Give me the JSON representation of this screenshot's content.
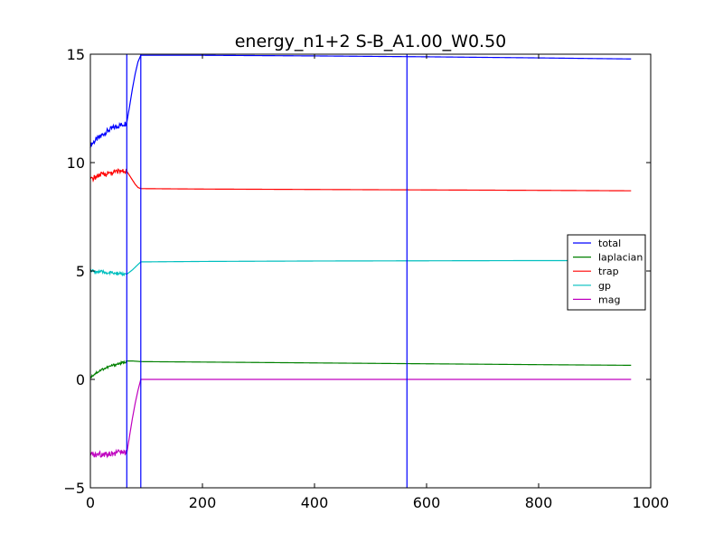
{
  "chart_data": {
    "type": "line",
    "title": "energy_n1+2 S-B_A1.00_W0.50",
    "xlabel": "",
    "ylabel": "",
    "xlim": [
      0,
      1000
    ],
    "ylim": [
      -5,
      15
    ],
    "x_ticks": [
      0,
      200,
      400,
      600,
      800,
      1000
    ],
    "y_ticks": [
      -5,
      0,
      5,
      10,
      15
    ],
    "x_tick_labels": [
      "0",
      "200",
      "400",
      "600",
      "800",
      "1000"
    ],
    "y_tick_labels": [
      "−5",
      "0",
      "5",
      "10",
      "15"
    ],
    "grid": false,
    "legend_position": "center-right",
    "vertical_lines": [
      {
        "x": 65,
        "color": "#0000ff"
      },
      {
        "x": 90,
        "color": "#0000ff"
      },
      {
        "x": 565,
        "color": "#0000ff"
      }
    ],
    "series": [
      {
        "name": "total",
        "color": "#0000ff",
        "noise": 0.12,
        "points": [
          [
            0,
            10.8
          ],
          [
            10,
            11.05
          ],
          [
            20,
            11.25
          ],
          [
            30,
            11.45
          ],
          [
            40,
            11.6
          ],
          [
            50,
            11.7
          ],
          [
            60,
            11.78
          ],
          [
            65,
            11.85
          ],
          [
            70,
            12.6
          ],
          [
            75,
            13.4
          ],
          [
            80,
            14.1
          ],
          [
            85,
            14.65
          ],
          [
            90,
            14.95
          ],
          [
            200,
            14.95
          ],
          [
            400,
            14.92
          ],
          [
            600,
            14.88
          ],
          [
            800,
            14.83
          ],
          [
            965,
            14.78
          ]
        ]
      },
      {
        "name": "laplacian",
        "color": "#008000",
        "noise": 0.06,
        "points": [
          [
            0,
            0.1
          ],
          [
            10,
            0.3
          ],
          [
            20,
            0.45
          ],
          [
            30,
            0.55
          ],
          [
            40,
            0.65
          ],
          [
            50,
            0.72
          ],
          [
            60,
            0.78
          ],
          [
            65,
            0.85
          ],
          [
            75,
            0.85
          ],
          [
            90,
            0.82
          ],
          [
            200,
            0.8
          ],
          [
            400,
            0.76
          ],
          [
            600,
            0.72
          ],
          [
            800,
            0.68
          ],
          [
            965,
            0.65
          ]
        ]
      },
      {
        "name": "trap",
        "color": "#ff0000",
        "noise": 0.12,
        "points": [
          [
            0,
            9.2
          ],
          [
            10,
            9.35
          ],
          [
            20,
            9.45
          ],
          [
            30,
            9.5
          ],
          [
            40,
            9.55
          ],
          [
            50,
            9.6
          ],
          [
            65,
            9.6
          ],
          [
            70,
            9.4
          ],
          [
            75,
            9.2
          ],
          [
            80,
            9.0
          ],
          [
            85,
            8.85
          ],
          [
            90,
            8.8
          ],
          [
            200,
            8.78
          ],
          [
            400,
            8.76
          ],
          [
            600,
            8.74
          ],
          [
            800,
            8.72
          ],
          [
            965,
            8.7
          ]
        ]
      },
      {
        "name": "gp",
        "color": "#00bfbf",
        "noise": 0.08,
        "points": [
          [
            0,
            5.0
          ],
          [
            20,
            4.95
          ],
          [
            40,
            4.9
          ],
          [
            60,
            4.85
          ],
          [
            65,
            4.85
          ],
          [
            75,
            5.05
          ],
          [
            85,
            5.3
          ],
          [
            90,
            5.42
          ],
          [
            200,
            5.44
          ],
          [
            400,
            5.46
          ],
          [
            600,
            5.47
          ],
          [
            800,
            5.48
          ],
          [
            965,
            5.48
          ]
        ]
      },
      {
        "name": "mag",
        "color": "#bf00bf",
        "noise": 0.14,
        "points": [
          [
            0,
            -3.5
          ],
          [
            20,
            -3.45
          ],
          [
            40,
            -3.4
          ],
          [
            60,
            -3.35
          ],
          [
            65,
            -3.4
          ],
          [
            70,
            -2.6
          ],
          [
            75,
            -1.8
          ],
          [
            80,
            -1.1
          ],
          [
            85,
            -0.5
          ],
          [
            90,
            0.0
          ],
          [
            200,
            0.0
          ],
          [
            400,
            0.0
          ],
          [
            600,
            0.0
          ],
          [
            800,
            0.0
          ],
          [
            965,
            0.0
          ]
        ]
      }
    ]
  }
}
